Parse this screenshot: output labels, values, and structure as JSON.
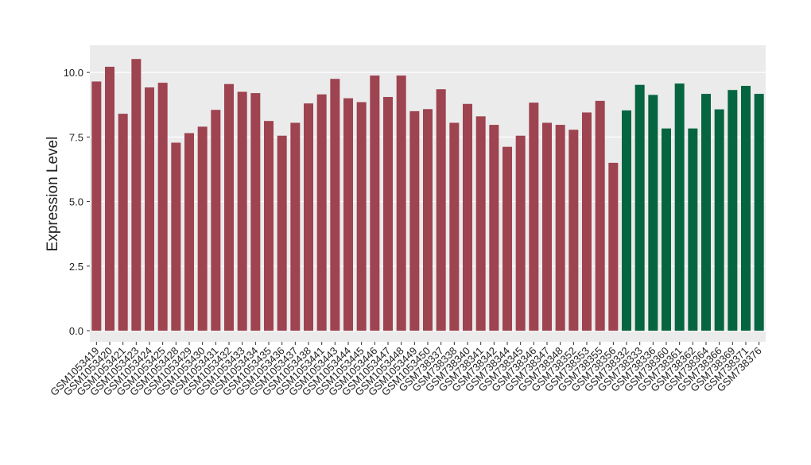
{
  "chart_data": {
    "type": "bar",
    "y_label": "Expression Level",
    "categories": [
      "GSM1053419",
      "GSM1053420",
      "GSM1053421",
      "GSM1053423",
      "GSM1053424",
      "GSM1053425",
      "GSM1053428",
      "GSM1053429",
      "GSM1053430",
      "GSM1053431",
      "GSM1053432",
      "GSM1053433",
      "GSM1053434",
      "GSM1053435",
      "GSM1053436",
      "GSM1053437",
      "GSM1053438",
      "GSM1053441",
      "GSM1053443",
      "GSM1053444",
      "GSM1053445",
      "GSM1053446",
      "GSM1053447",
      "GSM1053448",
      "GSM1053449",
      "GSM1053450",
      "GSM738337",
      "GSM738338",
      "GSM738340",
      "GSM738341",
      "GSM738342",
      "GSM738344",
      "GSM738345",
      "GSM738346",
      "GSM738347",
      "GSM738348",
      "GSM738352",
      "GSM738353",
      "GSM738355",
      "GSM738356",
      "GSM738332",
      "GSM738333",
      "GSM738336",
      "GSM738360",
      "GSM738361",
      "GSM738362",
      "GSM738364",
      "GSM738366",
      "GSM738369",
      "GSM738371",
      "GSM738376"
    ],
    "values": [
      9.65,
      10.22,
      8.4,
      10.52,
      9.42,
      9.6,
      7.28,
      7.65,
      7.9,
      8.55,
      9.55,
      9.25,
      9.2,
      8.12,
      7.55,
      8.05,
      8.8,
      9.15,
      9.75,
      9.0,
      8.85,
      9.88,
      9.05,
      9.88,
      8.5,
      8.58,
      9.35,
      8.05,
      8.78,
      8.3,
      7.97,
      7.12,
      7.55,
      8.83,
      8.05,
      7.97,
      7.78,
      8.45,
      8.9,
      6.5,
      8.53,
      9.52,
      9.13,
      7.83,
      9.57,
      7.83,
      9.17,
      8.57,
      9.32,
      9.48,
      9.17
    ],
    "colors": [
      "#9e4350",
      "#9e4350",
      "#9e4350",
      "#9e4350",
      "#9e4350",
      "#9e4350",
      "#9e4350",
      "#9e4350",
      "#9e4350",
      "#9e4350",
      "#9e4350",
      "#9e4350",
      "#9e4350",
      "#9e4350",
      "#9e4350",
      "#9e4350",
      "#9e4350",
      "#9e4350",
      "#9e4350",
      "#9e4350",
      "#9e4350",
      "#9e4350",
      "#9e4350",
      "#9e4350",
      "#9e4350",
      "#9e4350",
      "#9e4350",
      "#9e4350",
      "#9e4350",
      "#9e4350",
      "#9e4350",
      "#9e4350",
      "#9e4350",
      "#9e4350",
      "#9e4350",
      "#9e4350",
      "#9e4350",
      "#9e4350",
      "#9e4350",
      "#9e4350",
      "#066541",
      "#066541",
      "#066541",
      "#066541",
      "#066541",
      "#066541",
      "#066541",
      "#066541",
      "#066541",
      "#066541",
      "#066541"
    ],
    "ylim": [
      -0.43,
      11.05
    ],
    "yticks": [
      {
        "value": 0,
        "label": "0.0"
      },
      2.5,
      {
        "value": 5,
        "label": "5.0"
      },
      7.5,
      {
        "value": 10,
        "label": "10.0"
      }
    ],
    "grid": true
  }
}
